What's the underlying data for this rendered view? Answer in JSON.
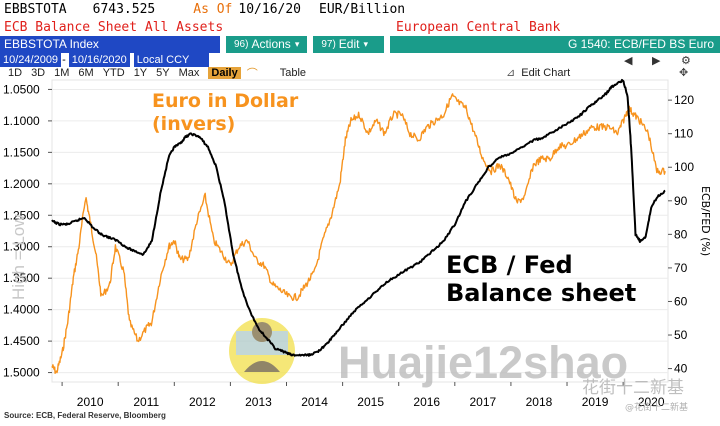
{
  "header": {
    "ticker": "EBBSTOTA",
    "last_value": "6743.525",
    "as_of_label": "As Of",
    "as_of_date": "10/16/20",
    "units": "EUR/Billion",
    "description": "ECB Balance Sheet All Assets",
    "source_name": "European Central Bank",
    "security": "EBBSTOTA Index",
    "actions_num": "96)",
    "actions_label": "Actions",
    "edit_num": "97)",
    "edit_label": "Edit",
    "graph_id": "G 1540: ECB/FED BS Euro",
    "date_from": "10/24/2009",
    "date_to": "10/16/2020",
    "currency": "Local CCY",
    "periods": [
      "1D",
      "3D",
      "1M",
      "6M",
      "YTD",
      "1Y",
      "5Y",
      "Max"
    ],
    "frequency": "Daily",
    "table_label": "Table",
    "edit_chart_label": "Edit Chart"
  },
  "chart_data": {
    "type": "line",
    "x_ticks": [
      "2010",
      "2011",
      "2012",
      "2013",
      "2014",
      "2015",
      "2016",
      "2017",
      "2018",
      "2019",
      "2020"
    ],
    "x_range": [
      2009.82,
      2020.8
    ],
    "left_axis": {
      "ticks": [
        "1.0500",
        "1.1000",
        "1.1500",
        "1.2000",
        "1.2500",
        "1.3000",
        "1.3500",
        "1.4000",
        "1.4500",
        "1.5000"
      ],
      "range": [
        1.035,
        1.515
      ],
      "inverted": true,
      "watermark_label": "High = Low"
    },
    "right_axis": {
      "label": "ECB/FED (%)",
      "ticks": [
        40,
        50,
        60,
        70,
        80,
        90,
        100,
        110,
        120
      ],
      "range": [
        36,
        126
      ]
    },
    "series": [
      {
        "name": "Euro in Dollar (invers)",
        "color": "#f7931e",
        "axis": "left",
        "x": [
          2009.82,
          2009.9,
          2010.0,
          2010.1,
          2010.2,
          2010.3,
          2010.42,
          2010.5,
          2010.6,
          2010.7,
          2010.85,
          2010.95,
          2011.1,
          2011.2,
          2011.35,
          2011.5,
          2011.6,
          2011.75,
          2011.9,
          2012.0,
          2012.1,
          2012.25,
          2012.4,
          2012.55,
          2012.7,
          2012.85,
          2013.0,
          2013.15,
          2013.3,
          2013.45,
          2013.6,
          2013.75,
          2013.9,
          2014.05,
          2014.2,
          2014.35,
          2014.5,
          2014.65,
          2014.8,
          2014.95,
          2015.05,
          2015.15,
          2015.3,
          2015.45,
          2015.6,
          2015.75,
          2015.9,
          2016.05,
          2016.2,
          2016.35,
          2016.5,
          2016.65,
          2016.8,
          2016.95,
          2017.05,
          2017.2,
          2017.35,
          2017.5,
          2017.65,
          2017.8,
          2017.95,
          2018.1,
          2018.25,
          2018.4,
          2018.55,
          2018.7,
          2018.85,
          2019.0,
          2019.15,
          2019.3,
          2019.45,
          2019.6,
          2019.75,
          2019.9,
          2020.0,
          2020.1,
          2020.2,
          2020.3,
          2020.45,
          2020.6,
          2020.75
        ],
        "y": [
          1.49,
          1.5,
          1.47,
          1.42,
          1.35,
          1.3,
          1.22,
          1.26,
          1.31,
          1.38,
          1.36,
          1.3,
          1.34,
          1.42,
          1.45,
          1.43,
          1.42,
          1.35,
          1.3,
          1.29,
          1.32,
          1.32,
          1.26,
          1.22,
          1.29,
          1.31,
          1.33,
          1.3,
          1.29,
          1.32,
          1.33,
          1.36,
          1.37,
          1.38,
          1.38,
          1.36,
          1.34,
          1.29,
          1.25,
          1.2,
          1.13,
          1.1,
          1.09,
          1.12,
          1.1,
          1.12,
          1.09,
          1.09,
          1.12,
          1.13,
          1.11,
          1.1,
          1.09,
          1.06,
          1.07,
          1.08,
          1.12,
          1.16,
          1.18,
          1.17,
          1.19,
          1.23,
          1.22,
          1.17,
          1.16,
          1.16,
          1.14,
          1.14,
          1.13,
          1.12,
          1.11,
          1.11,
          1.11,
          1.12,
          1.1,
          1.08,
          1.09,
          1.1,
          1.12,
          1.18,
          1.18
        ],
        "annotation": "Euro in Dollar\n(invers)"
      },
      {
        "name": "ECB / Fed Balance sheet",
        "color": "#000000",
        "axis": "right",
        "x": [
          2009.82,
          2009.95,
          2010.1,
          2010.25,
          2010.4,
          2010.55,
          2010.7,
          2010.85,
          2011.0,
          2011.15,
          2011.3,
          2011.45,
          2011.6,
          2011.75,
          2011.9,
          2012.0,
          2012.1,
          2012.2,
          2012.3,
          2012.45,
          2012.6,
          2012.75,
          2012.9,
          2013.05,
          2013.2,
          2013.35,
          2013.5,
          2013.65,
          2013.8,
          2013.95,
          2014.1,
          2014.25,
          2014.4,
          2014.55,
          2014.7,
          2014.85,
          2015.0,
          2015.2,
          2015.4,
          2015.6,
          2015.8,
          2016.0,
          2016.2,
          2016.4,
          2016.6,
          2016.8,
          2017.0,
          2017.2,
          2017.4,
          2017.6,
          2017.8,
          2018.0,
          2018.2,
          2018.4,
          2018.6,
          2018.8,
          2019.0,
          2019.2,
          2019.4,
          2019.55,
          2019.7,
          2019.8,
          2019.9,
          2020.0,
          2020.08,
          2020.15,
          2020.22,
          2020.3,
          2020.4,
          2020.5,
          2020.6,
          2020.75
        ],
        "y": [
          84,
          83,
          83,
          84,
          85,
          82,
          80,
          79,
          78,
          76,
          75,
          74,
          78,
          92,
          103,
          106,
          107,
          109,
          110,
          109,
          106,
          100,
          89,
          74,
          64,
          57,
          52,
          49,
          46,
          45,
          44,
          44,
          44,
          45,
          47,
          50,
          53,
          57,
          60,
          63,
          66,
          68,
          70,
          72,
          75,
          78,
          83,
          90,
          95,
          100,
          103,
          104,
          106,
          108,
          109,
          111,
          113,
          115,
          118,
          120,
          122,
          124,
          125,
          126,
          121,
          104,
          80,
          78,
          79,
          88,
          91,
          93
        ],
        "annotation": "ECB / Fed\nBalance sheet"
      }
    ],
    "source": "Source: ECB, Federal Reserve, Bloomberg",
    "watermark_text": "Huajie12shao",
    "watermark_brand": "花街十二新基",
    "watermark_handle": "@花街十二新基"
  }
}
